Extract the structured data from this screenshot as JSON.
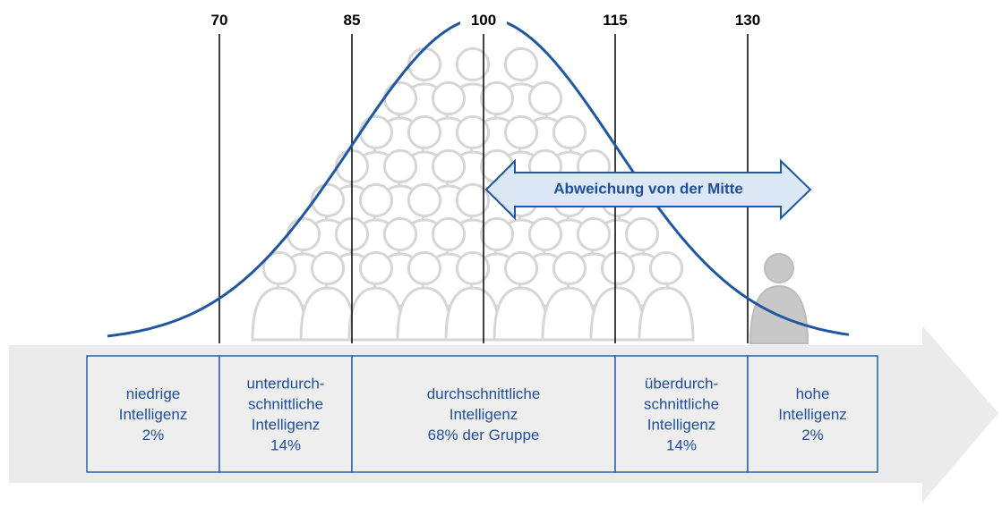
{
  "ticks": [
    "70",
    "85",
    "100",
    "115",
    "130"
  ],
  "arrow_label": "Abweichung von der Mitte",
  "boxes": [
    {
      "lines": [
        "niedrige",
        "Intelligenz",
        "2%"
      ]
    },
    {
      "lines": [
        "unterdurch-",
        "schnittliche",
        "Intelligenz",
        "14%"
      ]
    },
    {
      "lines": [
        "durchschnittliche",
        "Intelligenz",
        "68% der Gruppe"
      ]
    },
    {
      "lines": [
        "überdurch-",
        "schnittliche",
        "Intelligenz",
        "14%"
      ]
    },
    {
      "lines": [
        "hohe",
        "Intelligenz",
        "2%"
      ]
    }
  ]
}
